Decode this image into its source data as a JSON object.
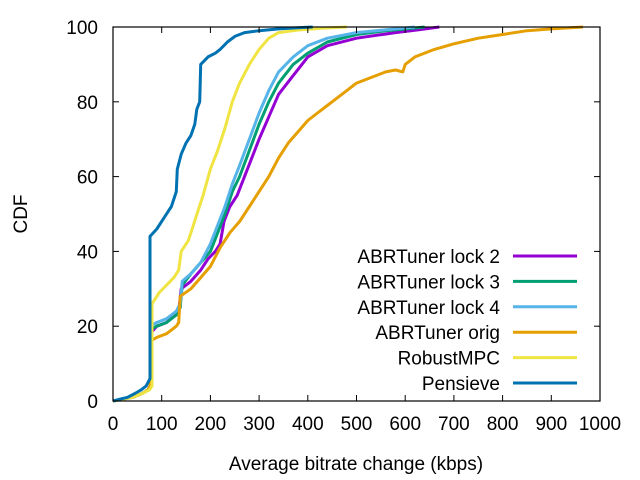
{
  "chart_data": {
    "type": "line",
    "title": "",
    "xlabel": "Average bitrate change (kbps)",
    "ylabel": "CDF",
    "xlim": [
      0,
      1000
    ],
    "ylim": [
      0,
      100
    ],
    "xticks": [
      0,
      100,
      200,
      300,
      400,
      500,
      600,
      700,
      800,
      900,
      1000
    ],
    "yticks": [
      0,
      20,
      40,
      60,
      80,
      100
    ],
    "grid": false,
    "legend_position": "bottom-right",
    "series": [
      {
        "name": "ABRTuner lock 2",
        "color": "#9400d3",
        "points": [
          [
            0,
            0
          ],
          [
            20,
            0.5
          ],
          [
            40,
            1
          ],
          [
            60,
            2
          ],
          [
            72,
            3
          ],
          [
            76,
            4
          ],
          [
            76,
            18
          ],
          [
            90,
            20
          ],
          [
            110,
            21
          ],
          [
            125,
            23
          ],
          [
            135,
            24
          ],
          [
            140,
            30
          ],
          [
            160,
            32
          ],
          [
            180,
            35
          ],
          [
            195,
            38
          ],
          [
            210,
            40
          ],
          [
            220,
            42
          ],
          [
            228,
            48
          ],
          [
            240,
            52
          ],
          [
            255,
            55
          ],
          [
            270,
            60
          ],
          [
            285,
            65
          ],
          [
            300,
            70
          ],
          [
            320,
            76
          ],
          [
            340,
            82
          ],
          [
            370,
            87
          ],
          [
            400,
            92
          ],
          [
            440,
            95
          ],
          [
            500,
            97
          ],
          [
            580,
            98.5
          ],
          [
            630,
            99.3
          ],
          [
            670,
            100
          ]
        ]
      },
      {
        "name": "ABRTuner lock 3",
        "color": "#009e73",
        "points": [
          [
            0,
            0
          ],
          [
            20,
            0.5
          ],
          [
            40,
            1
          ],
          [
            60,
            2
          ],
          [
            72,
            3
          ],
          [
            76,
            4
          ],
          [
            76,
            19
          ],
          [
            90,
            20
          ],
          [
            110,
            21
          ],
          [
            130,
            23
          ],
          [
            138,
            25
          ],
          [
            142,
            31
          ],
          [
            160,
            34
          ],
          [
            180,
            37
          ],
          [
            200,
            40
          ],
          [
            215,
            45
          ],
          [
            230,
            50
          ],
          [
            245,
            56
          ],
          [
            260,
            60
          ],
          [
            280,
            67
          ],
          [
            300,
            74
          ],
          [
            320,
            80
          ],
          [
            340,
            85
          ],
          [
            370,
            90
          ],
          [
            400,
            93
          ],
          [
            440,
            96
          ],
          [
            500,
            98
          ],
          [
            560,
            99
          ],
          [
            610,
            99.6
          ],
          [
            640,
            100
          ]
        ]
      },
      {
        "name": "ABRTuner lock 4",
        "color": "#56b4e9",
        "points": [
          [
            0,
            0
          ],
          [
            20,
            0.5
          ],
          [
            40,
            1
          ],
          [
            60,
            2
          ],
          [
            72,
            3
          ],
          [
            76,
            4
          ],
          [
            76,
            20
          ],
          [
            90,
            21
          ],
          [
            110,
            22
          ],
          [
            130,
            24
          ],
          [
            138,
            26
          ],
          [
            142,
            32
          ],
          [
            160,
            34
          ],
          [
            180,
            37
          ],
          [
            200,
            42
          ],
          [
            215,
            47
          ],
          [
            230,
            52
          ],
          [
            245,
            58
          ],
          [
            260,
            63
          ],
          [
            280,
            70
          ],
          [
            300,
            77
          ],
          [
            320,
            83
          ],
          [
            340,
            88
          ],
          [
            370,
            92
          ],
          [
            400,
            95
          ],
          [
            440,
            97
          ],
          [
            500,
            98.5
          ],
          [
            580,
            99.5
          ],
          [
            620,
            100
          ]
        ]
      },
      {
        "name": "ABRTuner orig",
        "color": "#e69f00",
        "points": [
          [
            0,
            0
          ],
          [
            20,
            0.5
          ],
          [
            40,
            1
          ],
          [
            60,
            2
          ],
          [
            72,
            3
          ],
          [
            76,
            4
          ],
          [
            76,
            16
          ],
          [
            90,
            17
          ],
          [
            110,
            18
          ],
          [
            130,
            20
          ],
          [
            135,
            21
          ],
          [
            138,
            28
          ],
          [
            160,
            30
          ],
          [
            180,
            33
          ],
          [
            200,
            36
          ],
          [
            220,
            41
          ],
          [
            240,
            45
          ],
          [
            260,
            48
          ],
          [
            280,
            52
          ],
          [
            300,
            56
          ],
          [
            320,
            60
          ],
          [
            340,
            65
          ],
          [
            360,
            69
          ],
          [
            380,
            72
          ],
          [
            400,
            75
          ],
          [
            420,
            77
          ],
          [
            440,
            79
          ],
          [
            460,
            81
          ],
          [
            480,
            83
          ],
          [
            500,
            85
          ],
          [
            520,
            86
          ],
          [
            540,
            87
          ],
          [
            560,
            88
          ],
          [
            580,
            88.5
          ],
          [
            595,
            88
          ],
          [
            600,
            90
          ],
          [
            620,
            92
          ],
          [
            660,
            94
          ],
          [
            700,
            95.5
          ],
          [
            750,
            97
          ],
          [
            800,
            98
          ],
          [
            850,
            99
          ],
          [
            900,
            99.5
          ],
          [
            965,
            100
          ]
        ]
      },
      {
        "name": "RobustMPC",
        "color": "#f0e442",
        "points": [
          [
            0,
            0
          ],
          [
            20,
            0.5
          ],
          [
            40,
            1
          ],
          [
            60,
            2
          ],
          [
            75,
            3
          ],
          [
            80,
            4
          ],
          [
            80,
            26
          ],
          [
            95,
            29
          ],
          [
            110,
            31
          ],
          [
            125,
            33
          ],
          [
            135,
            35
          ],
          [
            140,
            40
          ],
          [
            155,
            43
          ],
          [
            170,
            49
          ],
          [
            185,
            55
          ],
          [
            200,
            62
          ],
          [
            215,
            67
          ],
          [
            230,
            73
          ],
          [
            245,
            80
          ],
          [
            260,
            85
          ],
          [
            280,
            90
          ],
          [
            300,
            94
          ],
          [
            320,
            97
          ],
          [
            340,
            98.5
          ],
          [
            380,
            99.2
          ],
          [
            430,
            99.7
          ],
          [
            480,
            100
          ]
        ]
      },
      {
        "name": "Pensieve",
        "color": "#0072b2",
        "points": [
          [
            0,
            0
          ],
          [
            15,
            0.5
          ],
          [
            30,
            1
          ],
          [
            45,
            2
          ],
          [
            58,
            3
          ],
          [
            68,
            4
          ],
          [
            72,
            5
          ],
          [
            76,
            6
          ],
          [
            76,
            44
          ],
          [
            90,
            46
          ],
          [
            105,
            49
          ],
          [
            120,
            52
          ],
          [
            130,
            56
          ],
          [
            132,
            62
          ],
          [
            140,
            66
          ],
          [
            150,
            69
          ],
          [
            160,
            71
          ],
          [
            168,
            74
          ],
          [
            172,
            78
          ],
          [
            178,
            80
          ],
          [
            180,
            90
          ],
          [
            195,
            92
          ],
          [
            210,
            93
          ],
          [
            220,
            94
          ],
          [
            235,
            96
          ],
          [
            250,
            97.5
          ],
          [
            270,
            98.5
          ],
          [
            300,
            99
          ],
          [
            340,
            99.5
          ],
          [
            380,
            99.8
          ],
          [
            410,
            100
          ]
        ]
      }
    ]
  }
}
